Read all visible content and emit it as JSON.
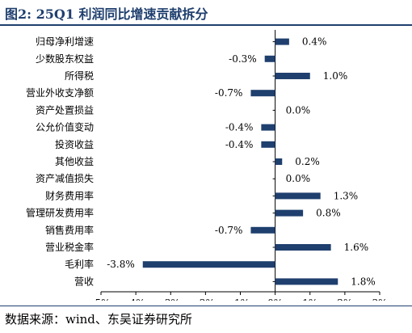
{
  "figure": {
    "title": "图2:  25Q1 利润同比增速贡献拆分",
    "source": "数据来源：wind、东吴证券研究所"
  },
  "chart_data": {
    "type": "bar",
    "orientation": "horizontal",
    "title": "",
    "xlabel": "",
    "ylabel": "",
    "categories": [
      "归母净利增速",
      "少数股东权益",
      "所得税",
      "营业外收支净额",
      "资产处置损益",
      "公允价值变动",
      "投资收益",
      "其他收益",
      "资产减值损失",
      "财务费用率",
      "管理研发费用率",
      "销售费用率",
      "营业税金率",
      "毛利率",
      "营收"
    ],
    "values": [
      0.4,
      -0.3,
      1.0,
      -0.7,
      0.0,
      -0.4,
      -0.4,
      0.2,
      0.0,
      1.3,
      0.8,
      -0.7,
      1.6,
      -3.8,
      1.8
    ],
    "value_labels": [
      "0.4%",
      "-0.3%",
      "1.0%",
      "-0.7%",
      "0.0%",
      "-0.4%",
      "-0.4%",
      "0.2%",
      "0.0%",
      "1.3%",
      "0.8%",
      "-0.7%",
      "1.6%",
      "-3.8%",
      "1.8%"
    ],
    "xlim": [
      -5,
      3
    ],
    "x_ticks": [
      -5,
      -4,
      -3,
      -2,
      -1,
      0,
      1,
      2,
      3
    ],
    "x_tick_labels": [
      "-5%",
      "-4%",
      "-3%",
      "-2%",
      "-1%",
      "0%",
      "1%",
      "2%",
      "3%"
    ],
    "grid": false,
    "legend": "none",
    "bar_color": "#1f3f6e"
  }
}
